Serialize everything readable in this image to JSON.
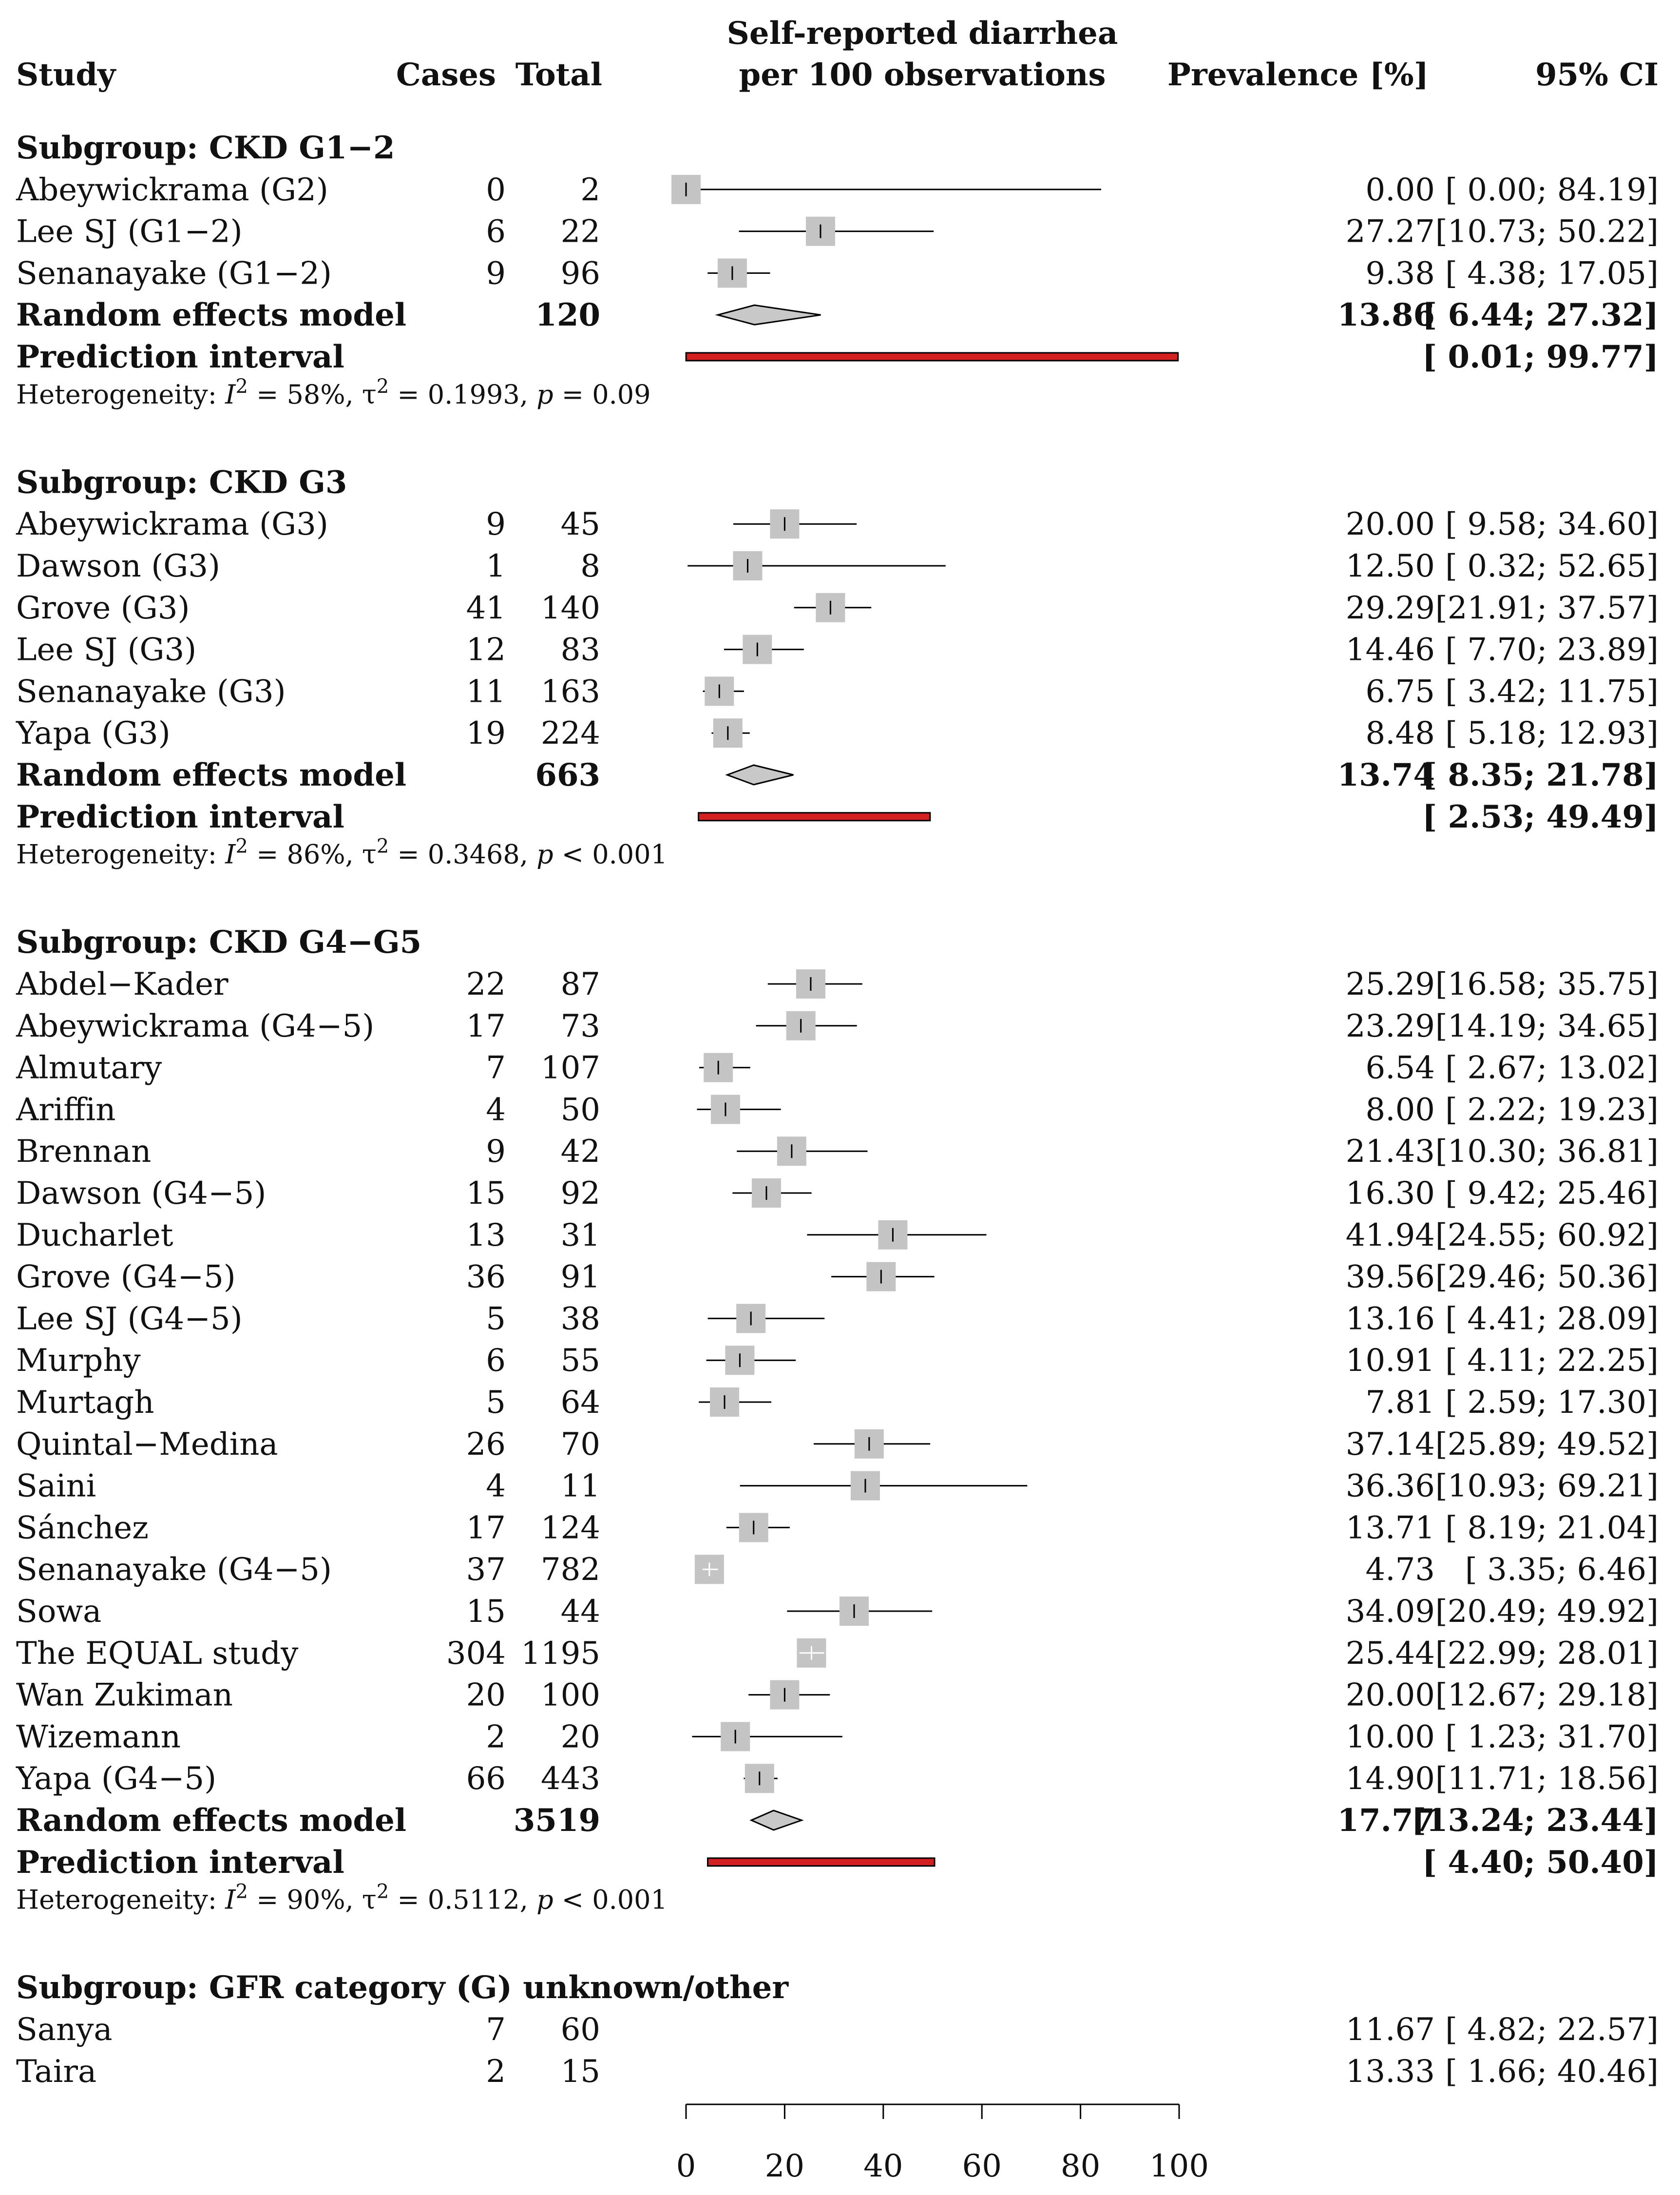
{
  "header": {
    "study": "Study",
    "cases": "Cases",
    "total": "Total",
    "plot_title_line1": "Self-reported diarrhea",
    "plot_title_line2": "per 100 observations",
    "prevalence": "Prevalence [%]",
    "ci": "95% CI"
  },
  "colors": {
    "box": "#c4c4c4",
    "diamond": "#c8c8c8",
    "prediction": "#d32020",
    "line": "#000000"
  },
  "chart_data": {
    "type": "forest",
    "xlim": [
      0,
      100
    ],
    "ticks": [
      "0",
      "20",
      "40",
      "60",
      "80",
      "100"
    ],
    "subgroups": [
      {
        "title": "Subgroup: CKD G1−2",
        "studies": [
          {
            "name": "Abeywickrama (G2)",
            "cases": "0",
            "total": "2",
            "est": 0.0,
            "lo": 0.0,
            "hi": 84.19,
            "prev": "0.00",
            "ci": "[ 0.00; 84.19]",
            "w": 1.0
          },
          {
            "name": "Lee SJ (G1−2)",
            "cases": "6",
            "total": "22",
            "est": 27.27,
            "lo": 10.73,
            "hi": 50.22,
            "prev": "27.27",
            "ci": "[10.73; 50.22]",
            "w": 1.0
          },
          {
            "name": "Senanayake (G1−2)",
            "cases": "9",
            "total": "96",
            "est": 9.38,
            "lo": 4.38,
            "hi": 17.05,
            "prev": "9.38",
            "ci": "[ 4.38; 17.05]",
            "w": 1.0
          }
        ],
        "model": {
          "label": "Random effects model",
          "total": "120",
          "est": 13.86,
          "lo": 6.44,
          "hi": 27.32,
          "prev": "13.86",
          "ci": "[ 6.44; 27.32]"
        },
        "prediction": {
          "label": "Prediction interval",
          "lo": 0.01,
          "hi": 99.77,
          "ci": "[ 0.01; 99.77]"
        },
        "het": {
          "prefix": "Heterogeneity: ",
          "i2": "I",
          "i2_rest": " = 58%,  ",
          "tau": "τ",
          "tau_rest": " = 0.1993,   ",
          "p": "p",
          "p_rest": " = 0.09",
          "sup": "2"
        }
      },
      {
        "title": "Subgroup: CKD G3",
        "studies": [
          {
            "name": "Abeywickrama (G3)",
            "cases": "9",
            "total": "45",
            "est": 20.0,
            "lo": 9.58,
            "hi": 34.6,
            "prev": "20.00",
            "ci": "[ 9.58; 34.60]",
            "w": 1.0
          },
          {
            "name": "Dawson (G3)",
            "cases": "1",
            "total": "8",
            "est": 12.5,
            "lo": 0.32,
            "hi": 52.65,
            "prev": "12.50",
            "ci": "[ 0.32; 52.65]",
            "w": 1.0
          },
          {
            "name": "Grove (G3)",
            "cases": "41",
            "total": "140",
            "est": 29.29,
            "lo": 21.91,
            "hi": 37.57,
            "prev": "29.29",
            "ci": "[21.91; 37.57]",
            "w": 1.0
          },
          {
            "name": "Lee SJ (G3)",
            "cases": "12",
            "total": "83",
            "est": 14.46,
            "lo": 7.7,
            "hi": 23.89,
            "prev": "14.46",
            "ci": "[ 7.70; 23.89]",
            "w": 1.0
          },
          {
            "name": "Senanayake (G3)",
            "cases": "11",
            "total": "163",
            "est": 6.75,
            "lo": 3.42,
            "hi": 11.75,
            "prev": "6.75",
            "ci": "[ 3.42; 11.75]",
            "w": 1.0
          },
          {
            "name": "Yapa (G3)",
            "cases": "19",
            "total": "224",
            "est": 8.48,
            "lo": 5.18,
            "hi": 12.93,
            "prev": "8.48",
            "ci": "[ 5.18; 12.93]",
            "w": 1.0
          }
        ],
        "model": {
          "label": "Random effects model",
          "total": "663",
          "est": 13.74,
          "lo": 8.35,
          "hi": 21.78,
          "prev": "13.74",
          "ci": "[ 8.35; 21.78]"
        },
        "prediction": {
          "label": "Prediction interval",
          "lo": 2.53,
          "hi": 49.49,
          "ci": "[ 2.53; 49.49]"
        },
        "het": {
          "prefix": "Heterogeneity: ",
          "i2": "I",
          "i2_rest": " = 86%,  ",
          "tau": "τ",
          "tau_rest": " = 0.3468,   ",
          "p": "p",
          "p_rest": " < 0.001",
          "sup": "2"
        }
      },
      {
        "title": "Subgroup: CKD G4−G5",
        "studies": [
          {
            "name": "Abdel−Kader",
            "cases": "22",
            "total": "87",
            "est": 25.29,
            "lo": 16.58,
            "hi": 35.75,
            "prev": "25.29",
            "ci": "[16.58; 35.75]",
            "w": 1.0
          },
          {
            "name": "Abeywickrama (G4−5)",
            "cases": "17",
            "total": "73",
            "est": 23.29,
            "lo": 14.19,
            "hi": 34.65,
            "prev": "23.29",
            "ci": "[14.19; 34.65]",
            "w": 1.0
          },
          {
            "name": "Almutary",
            "cases": "7",
            "total": "107",
            "est": 6.54,
            "lo": 2.67,
            "hi": 13.02,
            "prev": "6.54",
            "ci": "[ 2.67; 13.02]",
            "w": 1.0
          },
          {
            "name": "Ariffin",
            "cases": "4",
            "total": "50",
            "est": 8.0,
            "lo": 2.22,
            "hi": 19.23,
            "prev": "8.00",
            "ci": "[ 2.22; 19.23]",
            "w": 1.0
          },
          {
            "name": "Brennan",
            "cases": "9",
            "total": "42",
            "est": 21.43,
            "lo": 10.3,
            "hi": 36.81,
            "prev": "21.43",
            "ci": "[10.30; 36.81]",
            "w": 1.0
          },
          {
            "name": "Dawson (G4−5)",
            "cases": "15",
            "total": "92",
            "est": 16.3,
            "lo": 9.42,
            "hi": 25.46,
            "prev": "16.30",
            "ci": "[ 9.42; 25.46]",
            "w": 1.0
          },
          {
            "name": "Ducharlet",
            "cases": "13",
            "total": "31",
            "est": 41.94,
            "lo": 24.55,
            "hi": 60.92,
            "prev": "41.94",
            "ci": "[24.55; 60.92]",
            "w": 1.0
          },
          {
            "name": "Grove (G4−5)",
            "cases": "36",
            "total": "91",
            "est": 39.56,
            "lo": 29.46,
            "hi": 50.36,
            "prev": "39.56",
            "ci": "[29.46; 50.36]",
            "w": 1.0
          },
          {
            "name": "Lee SJ (G4−5)",
            "cases": "5",
            "total": "38",
            "est": 13.16,
            "lo": 4.41,
            "hi": 28.09,
            "prev": "13.16",
            "ci": "[ 4.41; 28.09]",
            "w": 1.0
          },
          {
            "name": "Murphy",
            "cases": "6",
            "total": "55",
            "est": 10.91,
            "lo": 4.11,
            "hi": 22.25,
            "prev": "10.91",
            "ci": "[ 4.11; 22.25]",
            "w": 1.0
          },
          {
            "name": "Murtagh",
            "cases": "5",
            "total": "64",
            "est": 7.81,
            "lo": 2.59,
            "hi": 17.3,
            "prev": "7.81",
            "ci": "[ 2.59; 17.30]",
            "w": 1.0
          },
          {
            "name": "Quintal−Medina",
            "cases": "26",
            "total": "70",
            "est": 37.14,
            "lo": 25.89,
            "hi": 49.52,
            "prev": "37.14",
            "ci": "[25.89; 49.52]",
            "w": 1.0
          },
          {
            "name": "Saini",
            "cases": "4",
            "total": "11",
            "est": 36.36,
            "lo": 10.93,
            "hi": 69.21,
            "prev": "36.36",
            "ci": "[10.93; 69.21]",
            "w": 1.0
          },
          {
            "name": "Sánchez",
            "cases": "17",
            "total": "124",
            "est": 13.71,
            "lo": 8.19,
            "hi": 21.04,
            "prev": "13.71",
            "ci": "[ 8.19; 21.04]",
            "w": 1.0
          },
          {
            "name": "Senanayake (G4−5)",
            "cases": "37",
            "total": "782",
            "est": 4.73,
            "lo": 3.35,
            "hi": 6.46,
            "prev": "4.73",
            "ci": "[ 3.35;  6.46]",
            "w": 1.0
          },
          {
            "name": "Sowa",
            "cases": "15",
            "total": "44",
            "est": 34.09,
            "lo": 20.49,
            "hi": 49.92,
            "prev": "34.09",
            "ci": "[20.49; 49.92]",
            "w": 1.0
          },
          {
            "name": "The EQUAL study",
            "cases": "304",
            "total": "1195",
            "est": 25.44,
            "lo": 22.99,
            "hi": 28.01,
            "prev": "25.44",
            "ci": "[22.99; 28.01]",
            "w": 1.0
          },
          {
            "name": "Wan Zukiman",
            "cases": "20",
            "total": "100",
            "est": 20.0,
            "lo": 12.67,
            "hi": 29.18,
            "prev": "20.00",
            "ci": "[12.67; 29.18]",
            "w": 1.0
          },
          {
            "name": "Wizemann",
            "cases": "2",
            "total": "20",
            "est": 10.0,
            "lo": 1.23,
            "hi": 31.7,
            "prev": "10.00",
            "ci": "[ 1.23; 31.70]",
            "w": 1.0
          },
          {
            "name": "Yapa (G4−5)",
            "cases": "66",
            "total": "443",
            "est": 14.9,
            "lo": 11.71,
            "hi": 18.56,
            "prev": "14.90",
            "ci": "[11.71; 18.56]",
            "w": 1.0
          }
        ],
        "model": {
          "label": "Random effects model",
          "total": "3519",
          "est": 17.77,
          "lo": 13.24,
          "hi": 23.44,
          "prev": "17.77",
          "ci": "[13.24; 23.44]"
        },
        "prediction": {
          "label": "Prediction interval",
          "lo": 4.4,
          "hi": 50.4,
          "ci": "[ 4.40; 50.40]"
        },
        "het": {
          "prefix": "Heterogeneity: ",
          "i2": "I",
          "i2_rest": " = 90%,  ",
          "tau": "τ",
          "tau_rest": " = 0.5112,   ",
          "p": "p",
          "p_rest": " < 0.001",
          "sup": "2"
        }
      },
      {
        "title": "Subgroup: GFR category (G) unknown/other",
        "studies": [
          {
            "name": "Sanya",
            "cases": "7",
            "total": "60",
            "est": 11.67,
            "lo": 4.82,
            "hi": 22.57,
            "prev": "11.67",
            "ci": "[ 4.82; 22.57]",
            "w": 0
          },
          {
            "name": "Taira",
            "cases": "2",
            "total": "15",
            "est": 13.33,
            "lo": 1.66,
            "hi": 40.46,
            "prev": "13.33",
            "ci": "[ 1.66; 40.46]",
            "w": 0
          }
        ]
      }
    ]
  }
}
